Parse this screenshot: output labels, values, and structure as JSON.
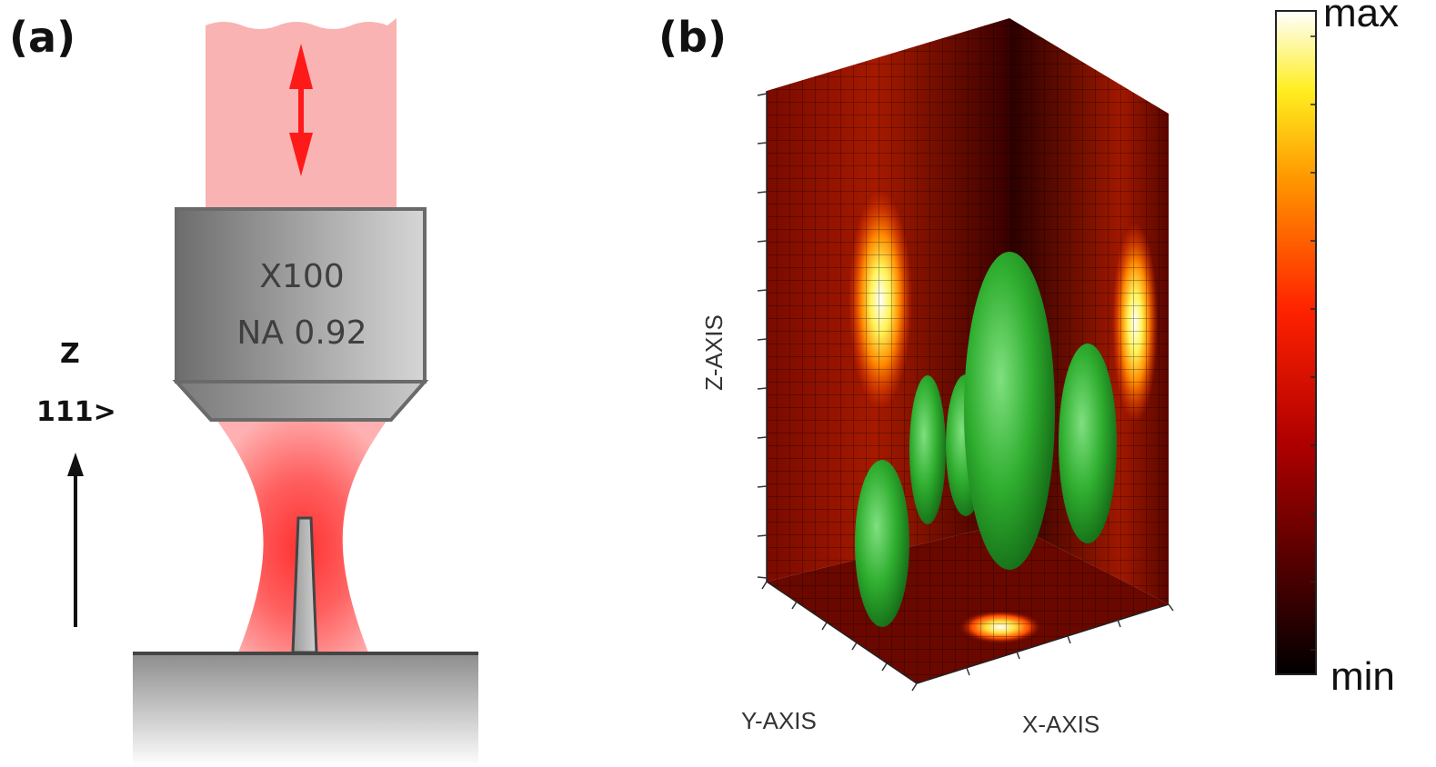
{
  "panel_a": {
    "label": "(a)",
    "objective_magnification": "X100",
    "objective_na": "NA 0.92",
    "z_label": "Z",
    "direction_label": "111>",
    "beam_color": "#f9b3b3",
    "arrow_color": "#ff1a1a"
  },
  "panel_b": {
    "label": "(b)",
    "z_axis_label": "Z-AXIS",
    "y_axis_label": "Y-AXIS",
    "x_axis_label": "X-AXIS",
    "isosurface_color": "#2fae2f",
    "colorbar": {
      "max_label": "max",
      "min_label": "min",
      "colormap": "hot"
    }
  }
}
